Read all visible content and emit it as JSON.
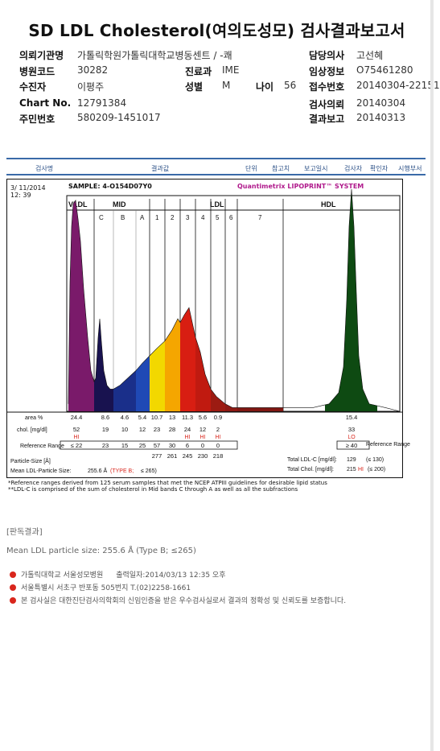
{
  "title": "SD LDL Cholesterol(여의도성모) 검사결과보고서",
  "info": {
    "institution_label": "의뢰기관명",
    "institution_value": "가톨릭학원가톨릭대학교병동센트 / -쾌",
    "hospital_code_label": "병원코드",
    "hospital_code_value": "30282",
    "dept_label": "진료과",
    "dept_value": "IME",
    "patient_label": "수진자",
    "patient_value": "이평주",
    "sex_label": "성별",
    "sex_value": "M",
    "age_label": "나이",
    "age_value": "56",
    "chart_label": "Chart No.",
    "chart_value": "12791384",
    "rrn_label": "주민번호",
    "rrn_value": "580209-1451017",
    "doctor_label": "담당의사",
    "doctor_value": "고선혜",
    "clinical_label": "임상정보",
    "clinical_value": "O75461280",
    "receipt_label": "접수번호",
    "receipt_value": "20140304-22151",
    "request_label": "검사의뢰",
    "request_value": "20140304",
    "report_label": "결과보고",
    "report_value": "20140313"
  },
  "report_header": {
    "c1": "검사명",
    "c2": "결과값",
    "c3": "단위",
    "c4": "참고치",
    "c5": "보고일시",
    "c6": "검사자",
    "c7": "확인자",
    "c8": "시행부서"
  },
  "report_meta": {
    "date": "3/ 11/2014",
    "time": "12: 39",
    "sample": "SAMPLE:  4-O154D07Y0",
    "brand": "Quantimetrix LIPOPRINT™ SYSTEM"
  },
  "chart_data": {
    "type": "area",
    "title": "",
    "band_groups": [
      "VLDL",
      "MID",
      "LDL",
      "HDL"
    ],
    "bands": [
      "VLDL",
      "C",
      "B",
      "A",
      "1",
      "2",
      "3",
      "4",
      "5",
      "6",
      "7",
      "HDL"
    ],
    "band_colors": [
      "#7a1a6a",
      "#18124f",
      "#1a2f8a",
      "#1f49b5",
      "#f2d800",
      "#f5a600",
      "#d81e12",
      "#c01a10",
      "#9c1b12",
      "#8c1a14",
      "#801813",
      "#0e4a12"
    ],
    "area_pct": [
      24.4,
      8.6,
      4.6,
      5.4,
      10.7,
      13.0,
      11.3,
      5.6,
      0.9,
      null,
      null,
      15.4
    ],
    "chol_mg_dl": [
      52,
      19,
      10,
      12,
      23,
      28,
      24,
      12,
      2,
      null,
      null,
      33
    ],
    "flags": [
      "HI",
      "",
      "",
      "",
      "",
      "",
      "HI",
      "HI",
      "HI",
      "",
      "",
      "LO"
    ],
    "reference_range": [
      "≤ 22",
      "23",
      "15",
      "25",
      "57",
      "30",
      "6",
      "0",
      "0",
      "",
      "",
      "≥ 40"
    ],
    "particle_size_a": [
      null,
      null,
      null,
      null,
      277,
      261,
      245,
      230,
      218,
      null,
      null,
      null
    ],
    "mean_ldl_particle_size": "255.6 Å",
    "ldl_type": "TYPE B",
    "ldl_type_ref": "≤ 265",
    "total_ldl_c": 129,
    "total_ldl_c_ref": "≤ 130",
    "total_chol": 215,
    "total_chol_flag": "HI",
    "total_chol_ref": "≤ 200"
  },
  "labels": {
    "area": "area %",
    "chol": "chol. [mg/dl]",
    "ref_range": "Reference Range",
    "ref_range_right": "Reference Range",
    "particle_size": "Particle-Size [Å]",
    "mean_ldl": "Mean LDL-Particle Size:",
    "mean_ldl_value": "255.6 Å",
    "mean_ldl_type": "(TYPE B;",
    "mean_ldl_type_ref": "≤ 265)",
    "total_ldl": "Total LDL-C [mg/dl]:",
    "total_ldl_value": "129",
    "total_ldl_ref": "(≤ 130)",
    "total_chol": "Total Chol. [mg/dl]:",
    "total_chol_value": "215",
    "total_chol_flag": "HI",
    "total_chol_ref": "(≤ 200)"
  },
  "notes": {
    "n1": "*Reference ranges derived from 125 serum samples that met the NCEP ATPIII guidelines for desirable lipid status",
    "n2": "**LDL-C is comprised of the sum of cholesterol in Mid bands C through A as well as all the subfractions"
  },
  "summary": {
    "heading": "[판독결과]",
    "text": "Mean LDL particle size: 255.6 Å (Type B; ≤265)"
  },
  "footer": {
    "f1": "가톨릭대학교 서울성모병원",
    "f1b": "출력일자:2014/03/13 12:35 오후",
    "f2": "서울특별시 서초구 반포동 505번지 T.(02)2258-1661",
    "f3": "본 검사실은 대한진단검사의학회의 신임인증을 받은 우수검사실로서 결과의 정확성 및 신뢰도를 보증합니다."
  },
  "colors": {
    "header_blue": "#2a4f86",
    "flag_red": "#d9261c",
    "brand_magenta": "#b01a8c"
  }
}
